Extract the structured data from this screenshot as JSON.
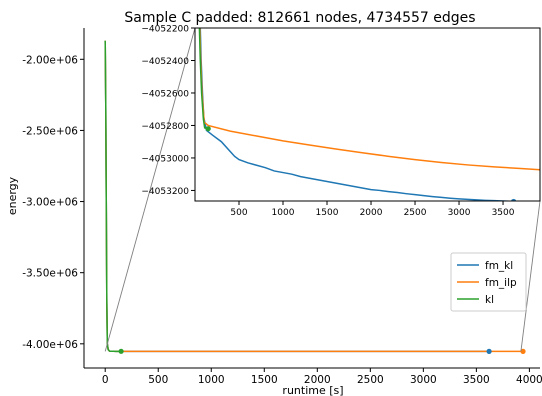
{
  "chart_data": {
    "type": "line",
    "title": "Sample C padded: 812661 nodes, 4734557 edges",
    "xlabel": "runtime [s]",
    "ylabel": "energy",
    "colors": {
      "fm_kl": "#1f77b4",
      "fm_ilp": "#ff7f0e",
      "kl": "#2ca02c"
    },
    "main": {
      "xlim": [
        -200,
        4100
      ],
      "ylim": [
        -4170000,
        -1780000
      ],
      "xticks": [
        0,
        500,
        1000,
        1500,
        2000,
        2500,
        3000,
        3500,
        4000
      ],
      "xtick_labels": [
        "0",
        "500",
        "1000",
        "1500",
        "2000",
        "2500",
        "3000",
        "3500",
        "4000"
      ],
      "yticks": [
        -2000000,
        -2500000,
        -3000000,
        -3500000,
        -4000000
      ],
      "ytick_labels": [
        "-2.00e+06",
        "-2.50e+06",
        "-3.00e+06",
        "-3.50e+06",
        "-4.00e+06"
      ]
    },
    "inset": {
      "xlim": [
        0,
        3920
      ],
      "ylim": [
        -4053265,
        -4052200
      ],
      "xticks": [
        500,
        1000,
        1500,
        2000,
        2500,
        3000,
        3500
      ],
      "xtick_labels": [
        "500",
        "1000",
        "1500",
        "2000",
        "2500",
        "3000",
        "3500"
      ],
      "yticks": [
        -4052200,
        -4052400,
        -4052600,
        -4052800,
        -4053000,
        -4053200
      ],
      "ytick_labels": [
        "−4052200",
        "−4052400",
        "−4052600",
        "−4052800",
        "−4053000",
        "−4053200"
      ]
    },
    "legend": {
      "position": "lower-right",
      "entries": [
        "fm_kl",
        "fm_ilp",
        "kl"
      ]
    },
    "series": [
      {
        "name": "fm_kl",
        "points": [
          [
            0,
            -1870000
          ],
          [
            5,
            -2300000
          ],
          [
            10,
            -3000000
          ],
          [
            15,
            -3700000
          ],
          [
            20,
            -4000000
          ],
          [
            28,
            -4040000
          ],
          [
            40,
            -4051000
          ],
          [
            60,
            -4052200
          ],
          [
            70,
            -4052400
          ],
          [
            85,
            -4052600
          ],
          [
            100,
            -4052750
          ],
          [
            130,
            -4052830
          ],
          [
            200,
            -4052860
          ],
          [
            300,
            -4052900
          ],
          [
            400,
            -4052960
          ],
          [
            450,
            -4052990
          ],
          [
            500,
            -4053010
          ],
          [
            600,
            -4053030
          ],
          [
            700,
            -4053045
          ],
          [
            800,
            -4053060
          ],
          [
            900,
            -4053080
          ],
          [
            1000,
            -4053090
          ],
          [
            1100,
            -4053100
          ],
          [
            1200,
            -4053115
          ],
          [
            1300,
            -4053125
          ],
          [
            1400,
            -4053135
          ],
          [
            1500,
            -4053145
          ],
          [
            1600,
            -4053155
          ],
          [
            1700,
            -4053165
          ],
          [
            1800,
            -4053175
          ],
          [
            1900,
            -4053185
          ],
          [
            2000,
            -4053195
          ],
          [
            2100,
            -4053200
          ],
          [
            2200,
            -4053207
          ],
          [
            2300,
            -4053213
          ],
          [
            2400,
            -4053220
          ],
          [
            2500,
            -4053226
          ],
          [
            2600,
            -4053232
          ],
          [
            2700,
            -4053238
          ],
          [
            2800,
            -4053243
          ],
          [
            2900,
            -4053248
          ],
          [
            3000,
            -4053252
          ],
          [
            3100,
            -4053255
          ],
          [
            3200,
            -4053258
          ],
          [
            3300,
            -4053261
          ],
          [
            3400,
            -4053263
          ],
          [
            3500,
            -4053265
          ],
          [
            3620,
            -4053268
          ]
        ],
        "end_marker": [
          3620,
          -4053268
        ]
      },
      {
        "name": "fm_ilp",
        "points": [
          [
            0,
            -1870000
          ],
          [
            5,
            -2300000
          ],
          [
            10,
            -3000000
          ],
          [
            15,
            -3700000
          ],
          [
            20,
            -4000000
          ],
          [
            28,
            -4040000
          ],
          [
            40,
            -4051000
          ],
          [
            55,
            -4052200
          ],
          [
            65,
            -4052400
          ],
          [
            80,
            -4052600
          ],
          [
            105,
            -4052780
          ],
          [
            150,
            -4052800
          ],
          [
            400,
            -4052835
          ],
          [
            700,
            -4052865
          ],
          [
            1000,
            -4052895
          ],
          [
            1300,
            -4052920
          ],
          [
            1600,
            -4052945
          ],
          [
            1900,
            -4052968
          ],
          [
            2200,
            -4052990
          ],
          [
            2500,
            -4053010
          ],
          [
            2800,
            -4053028
          ],
          [
            3100,
            -4053043
          ],
          [
            3400,
            -4053055
          ],
          [
            3700,
            -4053065
          ],
          [
            3940,
            -4053073
          ]
        ],
        "end_marker": [
          3940,
          -4053073
        ]
      },
      {
        "name": "kl",
        "points": [
          [
            0,
            -1870000
          ],
          [
            5,
            -2300000
          ],
          [
            10,
            -3000000
          ],
          [
            15,
            -3700000
          ],
          [
            20,
            -4000000
          ],
          [
            28,
            -4040000
          ],
          [
            40,
            -4051000
          ],
          [
            50,
            -4052200
          ],
          [
            60,
            -4052400
          ],
          [
            75,
            -4052600
          ],
          [
            95,
            -4052760
          ],
          [
            110,
            -4052815
          ],
          [
            150,
            -4052820
          ]
        ],
        "end_marker": [
          150,
          -4052820
        ]
      }
    ]
  }
}
